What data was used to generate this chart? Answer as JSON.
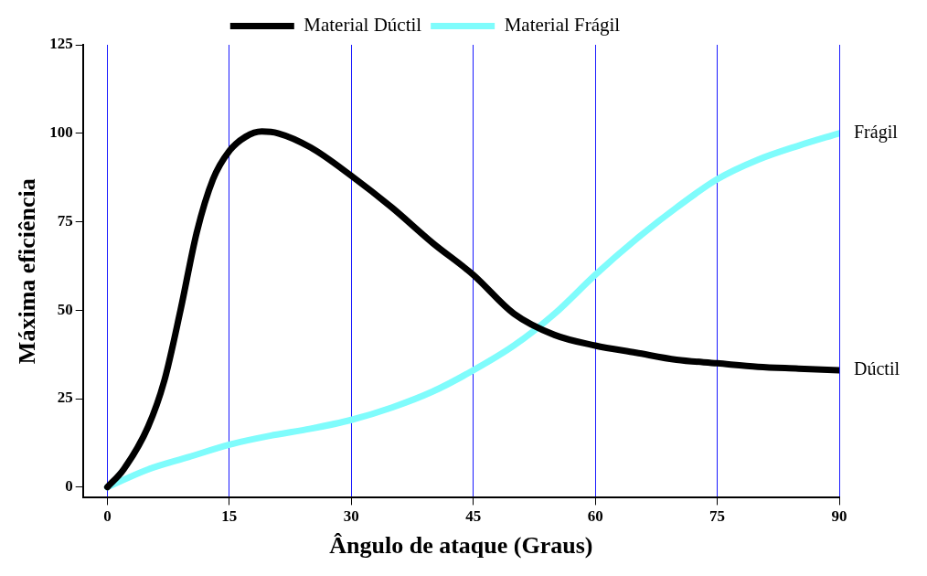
{
  "chart_data": {
    "type": "line",
    "xlabel": "Ângulo de ataque (Graus)",
    "ylabel": "Máxima eficiência",
    "xlim": [
      -3,
      90
    ],
    "xticks": [
      0,
      15,
      30,
      45,
      60,
      75,
      90
    ],
    "ylim": [
      -3,
      125
    ],
    "yticks": [
      0,
      25,
      50,
      75,
      100,
      125
    ],
    "grid": "x",
    "legend": "top",
    "marker": "none",
    "line_style": "solid",
    "annotations": [
      {
        "text": "Frágil",
        "x": 90,
        "y": 100
      },
      {
        "text": "Dúctil",
        "x": 90,
        "y": 33
      }
    ],
    "series": [
      {
        "name": "Material Dúctil",
        "color": "#000000",
        "x": [
          0,
          2,
          5,
          7,
          9,
          11,
          13,
          15,
          17,
          19,
          21,
          25,
          30,
          35,
          40,
          45,
          50,
          55,
          60,
          65,
          70,
          75,
          80,
          85,
          90
        ],
        "values": [
          0,
          5,
          17,
          30,
          50,
          72,
          87,
          95,
          99,
          100.5,
          100,
          96,
          88,
          79,
          69,
          60,
          49,
          43,
          40,
          38,
          36,
          35,
          34,
          33.5,
          33
        ]
      },
      {
        "name": "Material Frágil",
        "color": "#7ffcfc",
        "x": [
          0,
          5,
          10,
          15,
          20,
          25,
          30,
          35,
          40,
          45,
          50,
          55,
          60,
          65,
          70,
          75,
          80,
          85,
          90
        ],
        "values": [
          0,
          5,
          8.5,
          12,
          14.5,
          16.5,
          19,
          22.5,
          27,
          33,
          40,
          49,
          60,
          70,
          79,
          87,
          92.5,
          96.5,
          100
        ]
      }
    ]
  }
}
